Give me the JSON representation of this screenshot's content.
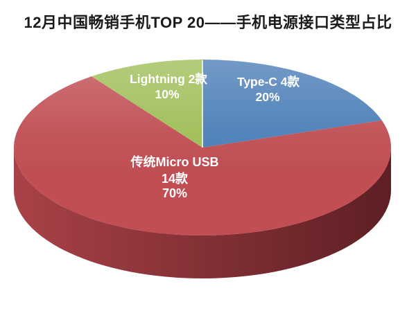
{
  "chart_data": {
    "type": "pie",
    "style": "3d-perspective",
    "title": "12月中国畅销手机TOP 20——手机电源接口类型占比",
    "title_color": "#1b1b1b",
    "background": "#ffffff",
    "total_items": 20,
    "unit": "款",
    "start_angle_deg": 0,
    "direction": "clockwise",
    "legend_position": "none",
    "labels_inside": true,
    "slices": [
      {
        "id": "type-c",
        "name": "Type-C",
        "count": 4,
        "share_pct": 20,
        "color": "#4b7eb7",
        "lines": [
          "Type-C  4款",
          "20%"
        ]
      },
      {
        "id": "micro-usb",
        "name": "传统Micro USB",
        "count": 14,
        "share_pct": 70,
        "color": "#c04e53",
        "lines": [
          "传统Micro USB",
          "14款",
          "70%"
        ]
      },
      {
        "id": "lightning",
        "name": "Lightning",
        "count": 2,
        "share_pct": 10,
        "color": "#9fbe57",
        "lines": [
          "Lightning  2款",
          "10%"
        ]
      }
    ],
    "side_shading_gradient": [
      "#a84248",
      "#5e1f24"
    ],
    "divider_color": "rgba(255,255,255,0.75)"
  }
}
